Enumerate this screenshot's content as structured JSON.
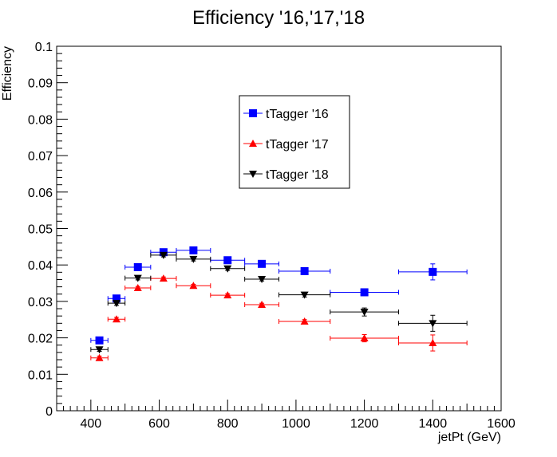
{
  "chart_data": {
    "type": "scatter",
    "title": "Efficiency '16,'17,'18",
    "xlabel": "jetPt (GeV)",
    "ylabel": "Efficiency",
    "xlim": [
      300,
      1600
    ],
    "ylim": [
      0,
      0.1
    ],
    "x_ticks": [
      400,
      600,
      800,
      1000,
      1200,
      1400,
      1600
    ],
    "y_ticks": [
      0,
      0.01,
      0.02,
      0.03,
      0.04,
      0.05,
      0.06,
      0.07,
      0.08,
      0.09,
      0.1
    ],
    "legend_position": "top-center",
    "grid": false,
    "series": [
      {
        "name": "tTagger '16",
        "color": "#0000ff",
        "marker": "square",
        "points": [
          {
            "x": 425,
            "y": 0.0193,
            "xerr": 25,
            "yerr": 0.0006
          },
          {
            "x": 475,
            "y": 0.0308,
            "xerr": 25,
            "yerr": 0.0006
          },
          {
            "x": 537.5,
            "y": 0.0394,
            "xerr": 37.5,
            "yerr": 0.0005
          },
          {
            "x": 612.5,
            "y": 0.0435,
            "xerr": 37.5,
            "yerr": 0.0005
          },
          {
            "x": 700,
            "y": 0.044,
            "xerr": 50,
            "yerr": 0.0005
          },
          {
            "x": 800,
            "y": 0.0413,
            "xerr": 50,
            "yerr": 0.0005
          },
          {
            "x": 900,
            "y": 0.0403,
            "xerr": 50,
            "yerr": 0.0005
          },
          {
            "x": 1025,
            "y": 0.0383,
            "xerr": 75,
            "yerr": 0.0006
          },
          {
            "x": 1200,
            "y": 0.0325,
            "xerr": 100,
            "yerr": 0.0009
          },
          {
            "x": 1400,
            "y": 0.0381,
            "xerr": 100,
            "yerr": 0.0022
          }
        ]
      },
      {
        "name": "tTagger '17",
        "color": "#ff0000",
        "marker": "triangle-up",
        "points": [
          {
            "x": 425,
            "y": 0.0145,
            "xerr": 25,
            "yerr": 0.0005
          },
          {
            "x": 475,
            "y": 0.0251,
            "xerr": 25,
            "yerr": 0.0005
          },
          {
            "x": 537.5,
            "y": 0.0337,
            "xerr": 37.5,
            "yerr": 0.0004
          },
          {
            "x": 612.5,
            "y": 0.0363,
            "xerr": 37.5,
            "yerr": 0.0004
          },
          {
            "x": 700,
            "y": 0.0343,
            "xerr": 50,
            "yerr": 0.0004
          },
          {
            "x": 800,
            "y": 0.0317,
            "xerr": 50,
            "yerr": 0.0004
          },
          {
            "x": 900,
            "y": 0.0291,
            "xerr": 50,
            "yerr": 0.0004
          },
          {
            "x": 1025,
            "y": 0.0245,
            "xerr": 75,
            "yerr": 0.0005
          },
          {
            "x": 1200,
            "y": 0.0199,
            "xerr": 100,
            "yerr": 0.001
          },
          {
            "x": 1400,
            "y": 0.0186,
            "xerr": 100,
            "yerr": 0.0022
          }
        ]
      },
      {
        "name": "tTagger '18",
        "color": "#000000",
        "marker": "triangle-down",
        "points": [
          {
            "x": 425,
            "y": 0.0168,
            "xerr": 25,
            "yerr": 0.0005
          },
          {
            "x": 475,
            "y": 0.0295,
            "xerr": 25,
            "yerr": 0.0006
          },
          {
            "x": 537.5,
            "y": 0.0364,
            "xerr": 37.5,
            "yerr": 0.0005
          },
          {
            "x": 612.5,
            "y": 0.0427,
            "xerr": 37.5,
            "yerr": 0.0005
          },
          {
            "x": 700,
            "y": 0.0416,
            "xerr": 50,
            "yerr": 0.0005
          },
          {
            "x": 800,
            "y": 0.039,
            "xerr": 50,
            "yerr": 0.0005
          },
          {
            "x": 900,
            "y": 0.0361,
            "xerr": 50,
            "yerr": 0.0005
          },
          {
            "x": 1025,
            "y": 0.0318,
            "xerr": 75,
            "yerr": 0.0006
          },
          {
            "x": 1200,
            "y": 0.0271,
            "xerr": 100,
            "yerr": 0.0011
          },
          {
            "x": 1400,
            "y": 0.024,
            "xerr": 100,
            "yerr": 0.0022
          }
        ]
      }
    ]
  }
}
